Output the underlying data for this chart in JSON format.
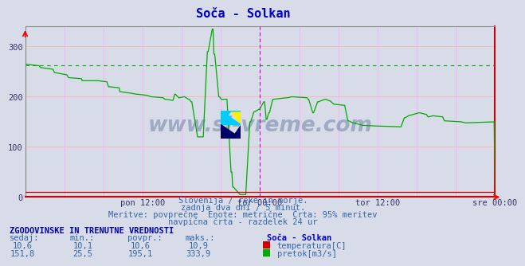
{
  "title": "Soča - Solkan",
  "bg_color": "#d8dce8",
  "plot_bg_color": "#d8dce8",
  "line_color_flow": "#00aa00",
  "line_color_temp": "#cc0000",
  "grid_color_h": "#ffb0b0",
  "grid_color_v": "#ffaaff",
  "border_color_bottom": "#cc0000",
  "border_color_right": "#cc0000",
  "ylim": [
    0,
    340
  ],
  "yticks": [
    0,
    100,
    200,
    300
  ],
  "xlabel_ticks": [
    "pon 12:00",
    "tor 00:00",
    "tor 12:00",
    "sre 00:00"
  ],
  "vline_positions": [
    0.5,
    1.0
  ],
  "hline_value": 263,
  "watermark": "www.si-vreme.com",
  "subtitle1": "Slovenija / reke in morje.",
  "subtitle2": "zadnja dva dni / 5 minut.",
  "subtitle3": "Meritve: povprečne  Enote: metrične  Črta: 95% meritev",
  "subtitle4": "navpična črta - razdelek 24 ur",
  "table_header": "ZGODOVINSKE IN TRENUTNE VREDNOSTI",
  "col_headers": [
    "sedaj:",
    "min.:",
    "povpr.:",
    "maks.:"
  ],
  "row1_values": [
    "10,6",
    "10,1",
    "10,6",
    "10,9"
  ],
  "row2_values": [
    "151,8",
    "25,5",
    "195,1",
    "333,9"
  ],
  "legend_station": "Soča - Solkan",
  "legend_temp": "temperatura[C]",
  "legend_flow": "pretok[m3/s]",
  "title_color": "#0000cc",
  "text_color": "#3366aa",
  "table_header_color": "#0000aa",
  "col_header_color": "#3366aa",
  "value_color": "#3366aa"
}
